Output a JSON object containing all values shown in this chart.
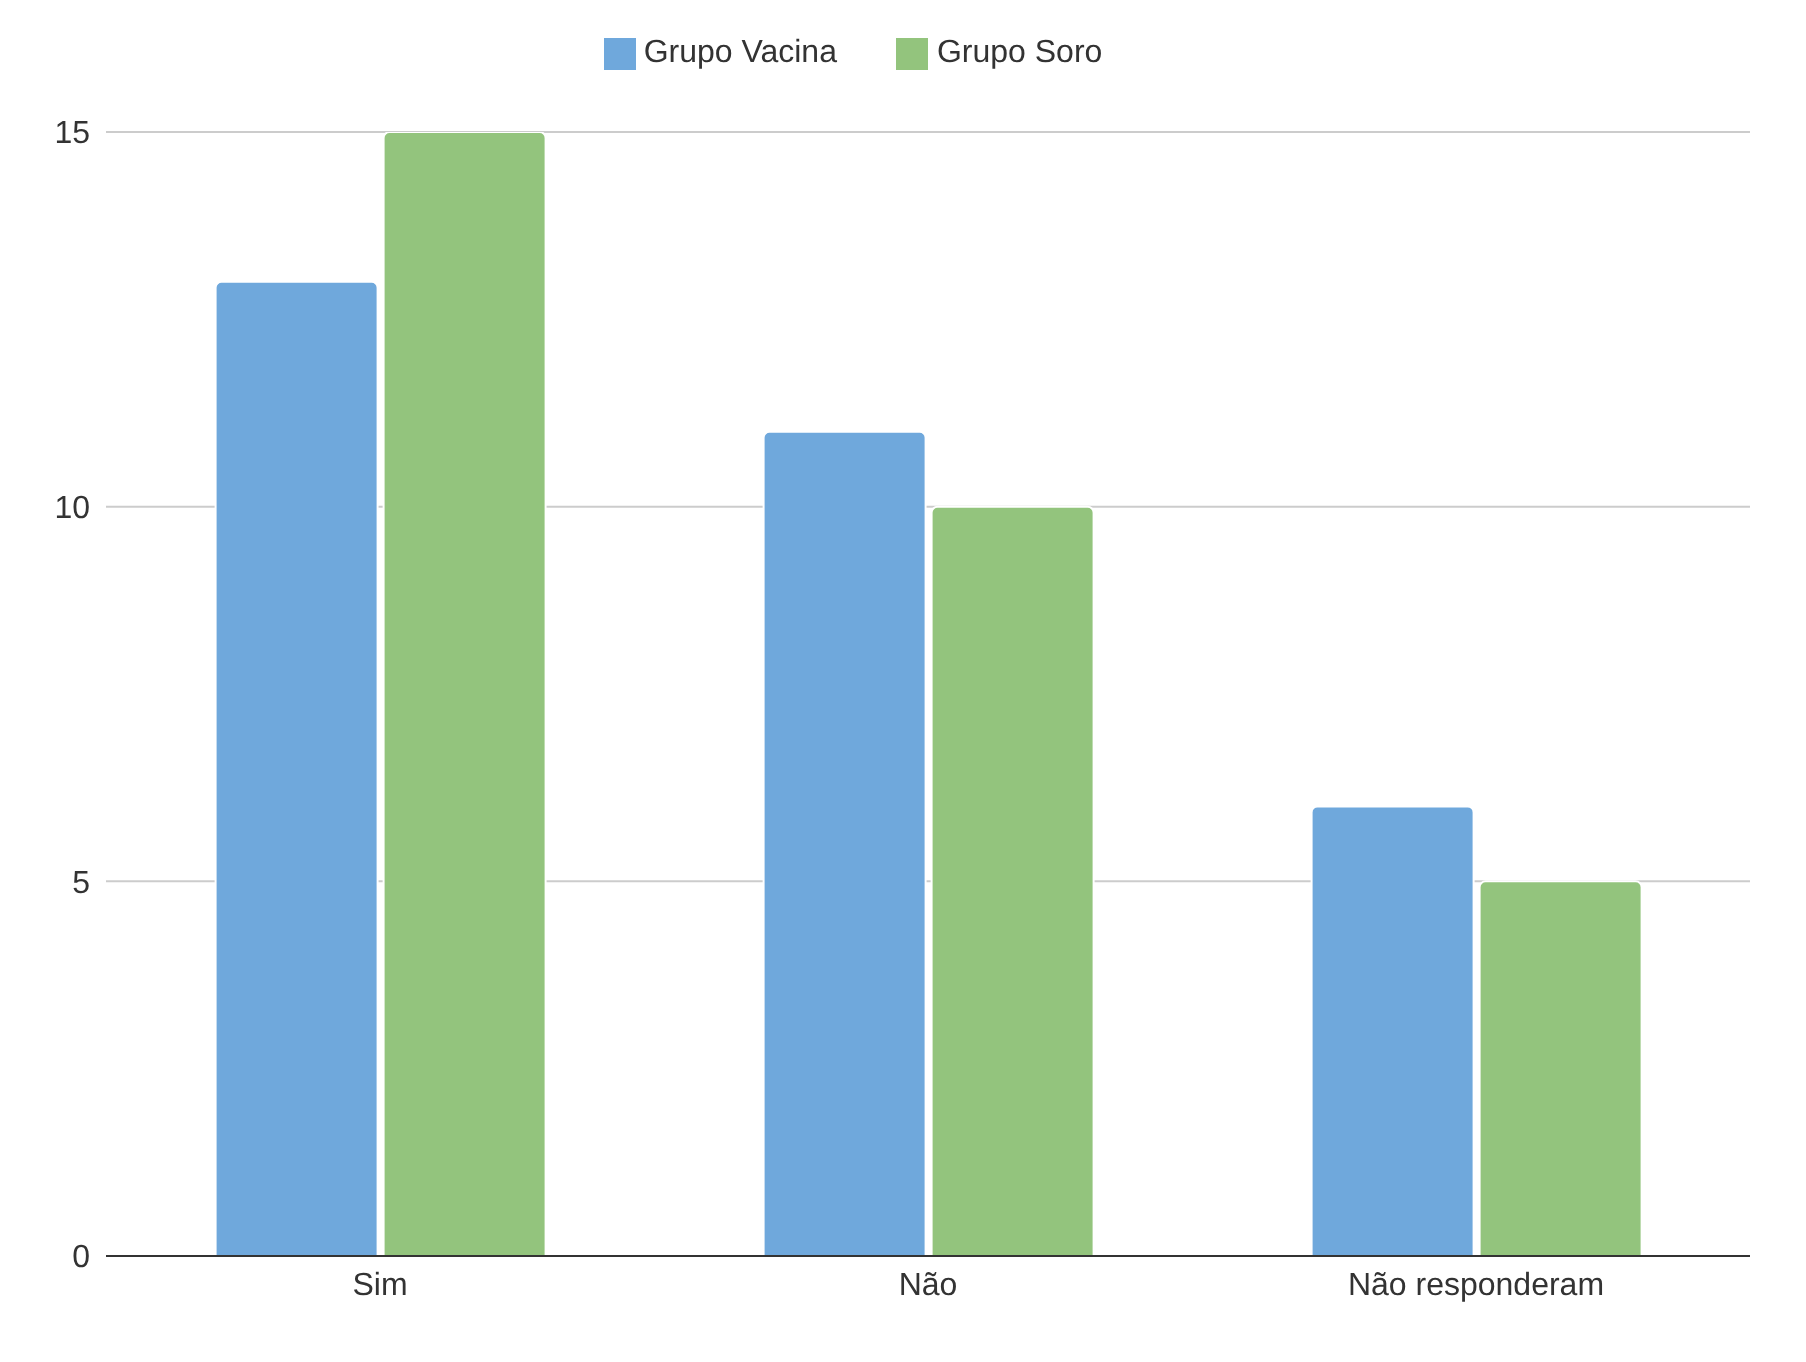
{
  "chart_data": {
    "type": "bar",
    "categories": [
      "Sim",
      "Não",
      "Não responderam"
    ],
    "series": [
      {
        "name": "Grupo Vacina",
        "color": "#6fa8dc",
        "values": [
          13,
          11,
          6
        ]
      },
      {
        "name": "Grupo Soro",
        "color": "#93c47d",
        "values": [
          15,
          10,
          5
        ]
      }
    ],
    "ylim": [
      0,
      15
    ],
    "yticks": [
      0,
      5,
      10,
      15
    ],
    "grid": "y",
    "legend": "top"
  }
}
